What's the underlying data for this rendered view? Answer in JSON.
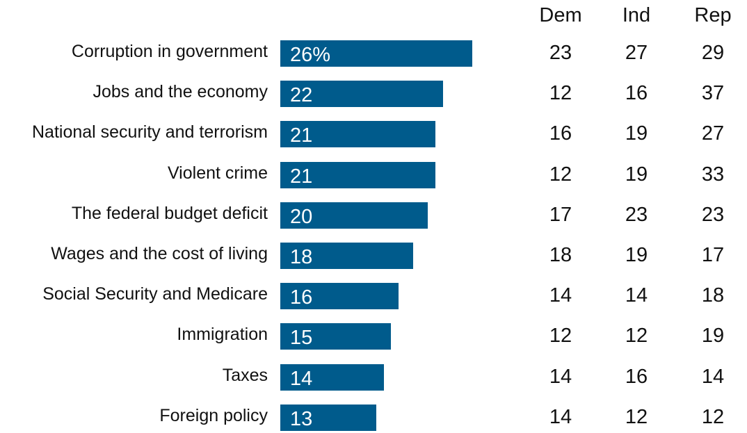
{
  "chart_data": {
    "type": "bar",
    "orientation": "horizontal",
    "categories": [
      "Corruption in government",
      "Jobs and the economy",
      "National security and terrorism",
      "Violent crime",
      "The federal budget deficit",
      "Wages and the cost of living",
      "Social Security and Medicare",
      "Immigration",
      "Taxes",
      "Foreign policy"
    ],
    "values": [
      26,
      22,
      21,
      21,
      20,
      18,
      16,
      15,
      14,
      13
    ],
    "value_labels": [
      "26%",
      "22",
      "21",
      "21",
      "20",
      "18",
      "16",
      "15",
      "14",
      "13"
    ],
    "bar_color": "#005b8c",
    "table": {
      "columns": [
        "Dem",
        "Ind",
        "Rep"
      ],
      "rows": [
        [
          23,
          27,
          29
        ],
        [
          12,
          16,
          37
        ],
        [
          16,
          19,
          27
        ],
        [
          12,
          19,
          33
        ],
        [
          17,
          23,
          23
        ],
        [
          18,
          19,
          17
        ],
        [
          14,
          14,
          18
        ],
        [
          12,
          12,
          19
        ],
        [
          14,
          16,
          14
        ],
        [
          14,
          12,
          12
        ]
      ]
    }
  }
}
